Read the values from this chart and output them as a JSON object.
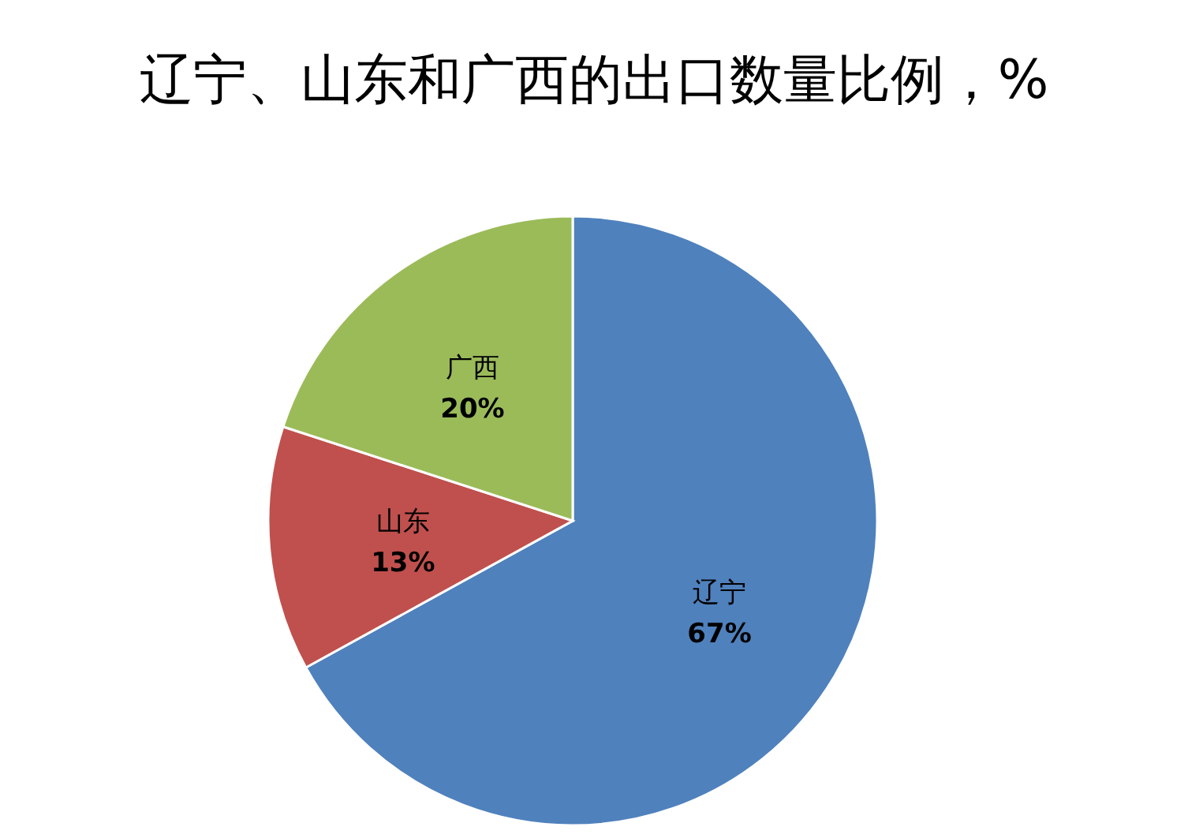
{
  "chart_data": {
    "type": "pie",
    "title": "辽宁、山东和广西的出口数量比例，%",
    "categories": [
      "辽宁",
      "山东",
      "广西"
    ],
    "values": [
      67,
      13,
      20
    ],
    "colors": [
      "#4f81bd",
      "#c0504d",
      "#9bbb59"
    ],
    "value_labels": [
      "67%",
      "13%",
      "20%"
    ],
    "legend": false
  }
}
